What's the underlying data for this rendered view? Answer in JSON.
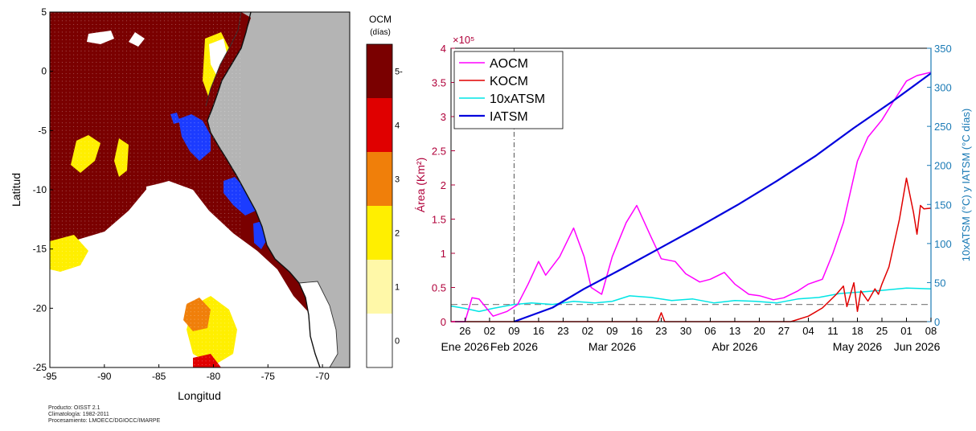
{
  "map": {
    "xlabel": "Longitud",
    "ylabel": "Latitud",
    "x_ticks": [
      "-95",
      "-90",
      "-85",
      "-80",
      "-75",
      "-70"
    ],
    "y_ticks": [
      "5",
      "0",
      "-5",
      "-10",
      "-15",
      "-20",
      "-25"
    ],
    "colorbar_title": "OCM",
    "colorbar_unit": "(días)",
    "colorbar_ticks": [
      "5-",
      "4",
      "3",
      "2",
      "1",
      "0"
    ],
    "colorbar_colors": [
      "#7a0000",
      "#e00000",
      "#f07f0a",
      "#ffef00",
      "#fff8a8",
      "#ffffff"
    ],
    "land_color": "#b4b4b4",
    "highlight_color": "#1c3cff"
  },
  "credits": {
    "line1": "Producto: OISST 2.1",
    "line2": "Climatología: 1982-2011",
    "line3": "Procesamiento: LMOECC/DGIOCC/IMARPE"
  },
  "chart_data": {
    "type": "line",
    "y_left_label": "Área (Km²)",
    "y_left_exponent": "×10⁵",
    "y_left_ticks": [
      "0",
      "0.5",
      "1",
      "1.5",
      "2",
      "2.5",
      "3",
      "3.5",
      "4"
    ],
    "y_left_range": [
      0,
      4
    ],
    "y_right_label": "10xATSM (°C) y IATSM (°C días)",
    "y_right_ticks": [
      "0",
      "50",
      "100",
      "150",
      "200",
      "250",
      "300",
      "350"
    ],
    "y_right_range": [
      0,
      350
    ],
    "x_day_ticks": [
      "26",
      "02",
      "09",
      "16",
      "23",
      "02",
      "09",
      "16",
      "23",
      "30",
      "06",
      "13",
      "20",
      "27",
      "04",
      "11",
      "18",
      "25",
      "01",
      "08"
    ],
    "x_month_labels": [
      "Ene 2026",
      "Feb 2026",
      "Mar 2026",
      "Abr 2026",
      "May 2026",
      "Jun 2026"
    ],
    "reference_line_right": 22,
    "vertical_marker": "09 Feb 2026",
    "legend": [
      "AOCM",
      "KOCM",
      "10xATSM",
      "IATSM"
    ],
    "colors": {
      "AOCM": "#ff00ff",
      "KOCM": "#e00000",
      "10xATSM": "#00e5e5",
      "IATSM": "#0000dd"
    },
    "series": [
      {
        "name": "AOCM",
        "axis": "left",
        "x": [
          "2026-01-22",
          "2026-01-26",
          "2026-01-28",
          "2026-01-30",
          "2026-02-03",
          "2026-02-07",
          "2026-02-10",
          "2026-02-13",
          "2026-02-16",
          "2026-02-18",
          "2026-02-22",
          "2026-02-26",
          "2026-03-01",
          "2026-03-03",
          "2026-03-06",
          "2026-03-09",
          "2026-03-13",
          "2026-03-16",
          "2026-03-20",
          "2026-03-23",
          "2026-03-27",
          "2026-03-30",
          "2026-04-03",
          "2026-04-06",
          "2026-04-10",
          "2026-04-13",
          "2026-04-17",
          "2026-04-20",
          "2026-04-24",
          "2026-04-27",
          "2026-05-01",
          "2026-05-04",
          "2026-05-08",
          "2026-05-11",
          "2026-05-14",
          "2026-05-18",
          "2026-05-21",
          "2026-05-25",
          "2026-05-28",
          "2026-06-01",
          "2026-06-04",
          "2026-06-08"
        ],
        "values": [
          0,
          0,
          0.35,
          0.33,
          0.08,
          0.15,
          0.25,
          0.55,
          0.88,
          0.68,
          0.95,
          1.37,
          0.95,
          0.5,
          0.4,
          0.95,
          1.45,
          1.7,
          1.25,
          0.92,
          0.88,
          0.7,
          0.58,
          0.62,
          0.72,
          0.55,
          0.4,
          0.38,
          0.32,
          0.35,
          0.45,
          0.55,
          0.62,
          1.0,
          1.45,
          2.35,
          2.7,
          2.95,
          3.2,
          3.52,
          3.6,
          3.65
        ]
      },
      {
        "name": "KOCM",
        "axis": "left",
        "x": [
          "2026-01-22",
          "2026-03-22",
          "2026-03-23",
          "2026-03-24",
          "2026-04-29",
          "2026-05-04",
          "2026-05-08",
          "2026-05-12",
          "2026-05-14",
          "2026-05-15",
          "2026-05-17",
          "2026-05-18",
          "2026-05-19",
          "2026-05-21",
          "2026-05-23",
          "2026-05-24",
          "2026-05-25",
          "2026-05-27",
          "2026-05-30",
          "2026-06-01",
          "2026-06-03",
          "2026-06-04",
          "2026-06-05",
          "2026-06-06",
          "2026-06-08"
        ],
        "values": [
          0,
          0,
          0.13,
          0,
          0,
          0.08,
          0.2,
          0.4,
          0.52,
          0.22,
          0.57,
          0.15,
          0.45,
          0.3,
          0.48,
          0.4,
          0.55,
          0.8,
          1.5,
          2.1,
          1.6,
          1.28,
          1.7,
          1.65,
          1.66
        ]
      },
      {
        "name": "10xATSM",
        "axis": "right",
        "x": [
          "2026-01-22",
          "2026-01-26",
          "2026-01-30",
          "2026-02-03",
          "2026-02-09",
          "2026-02-14",
          "2026-02-20",
          "2026-02-26",
          "2026-03-04",
          "2026-03-09",
          "2026-03-14",
          "2026-03-20",
          "2026-03-26",
          "2026-04-01",
          "2026-04-07",
          "2026-04-13",
          "2026-04-19",
          "2026-04-25",
          "2026-05-01",
          "2026-05-07",
          "2026-05-13",
          "2026-05-19",
          "2026-05-25",
          "2026-06-01",
          "2026-06-08"
        ],
        "values": [
          20,
          17,
          13,
          17,
          22,
          24,
          22,
          26,
          24,
          26,
          33,
          31,
          27,
          29,
          24,
          27,
          26,
          24,
          29,
          31,
          36,
          38,
          40,
          43,
          42
        ]
      },
      {
        "name": "IATSM",
        "axis": "right",
        "x": [
          "2026-02-09",
          "2026-02-20",
          "2026-03-01",
          "2026-03-12",
          "2026-03-23",
          "2026-04-03",
          "2026-04-14",
          "2026-04-25",
          "2026-05-06",
          "2026-05-17",
          "2026-05-28",
          "2026-06-08"
        ],
        "values": [
          0,
          18,
          42,
          68,
          95,
          122,
          150,
          180,
          212,
          248,
          282,
          318
        ]
      }
    ]
  }
}
